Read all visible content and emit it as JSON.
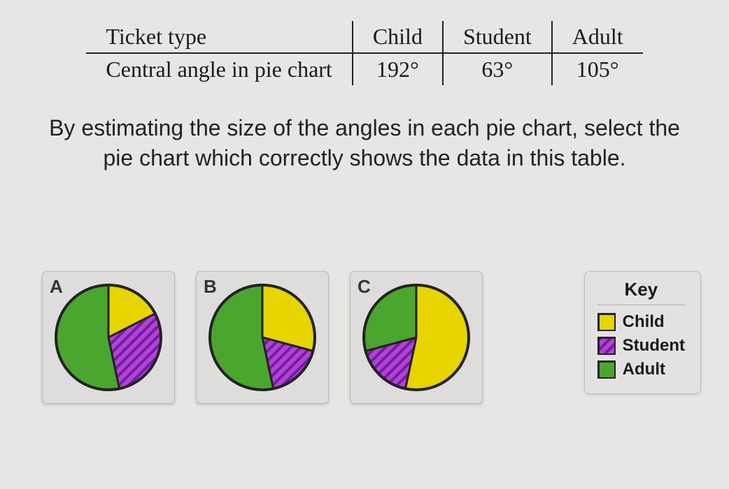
{
  "colors": {
    "child": "#e8d400",
    "student_fill": "#b93fd6",
    "student_hatch": "#6a22a0",
    "adult": "#4aa62f",
    "outline": "#222222",
    "card_bg": "#dedddb",
    "page_bg": "#e8e6e4"
  },
  "table": {
    "row1_label": "Ticket type",
    "row2_label": "Central angle in pie chart",
    "cols": [
      "Child",
      "Student",
      "Adult"
    ],
    "values": [
      "192°",
      "63°",
      "105°"
    ]
  },
  "prompt": "By estimating the size of the angles in each pie chart, select the pie chart which correctly shows the data in this table.",
  "pie_radius": 75,
  "charts": [
    {
      "label": "A",
      "slices": [
        {
          "kind": "child",
          "start": 0,
          "sweep": 63
        },
        {
          "kind": "student",
          "start": 63,
          "sweep": 105
        },
        {
          "kind": "adult",
          "start": 168,
          "sweep": 192
        }
      ]
    },
    {
      "label": "B",
      "slices": [
        {
          "kind": "child",
          "start": 0,
          "sweep": 105
        },
        {
          "kind": "student",
          "start": 105,
          "sweep": 63
        },
        {
          "kind": "adult",
          "start": 168,
          "sweep": 192
        }
      ]
    },
    {
      "label": "C",
      "slices": [
        {
          "kind": "child",
          "start": 0,
          "sweep": 192
        },
        {
          "kind": "student",
          "start": 192,
          "sweep": 63
        },
        {
          "kind": "adult",
          "start": 255,
          "sweep": 105
        }
      ]
    }
  ],
  "key": {
    "title": "Key",
    "items": [
      {
        "label": "Child",
        "kind": "child"
      },
      {
        "label": "Student",
        "kind": "student"
      },
      {
        "label": "Adult",
        "kind": "adult"
      }
    ]
  }
}
